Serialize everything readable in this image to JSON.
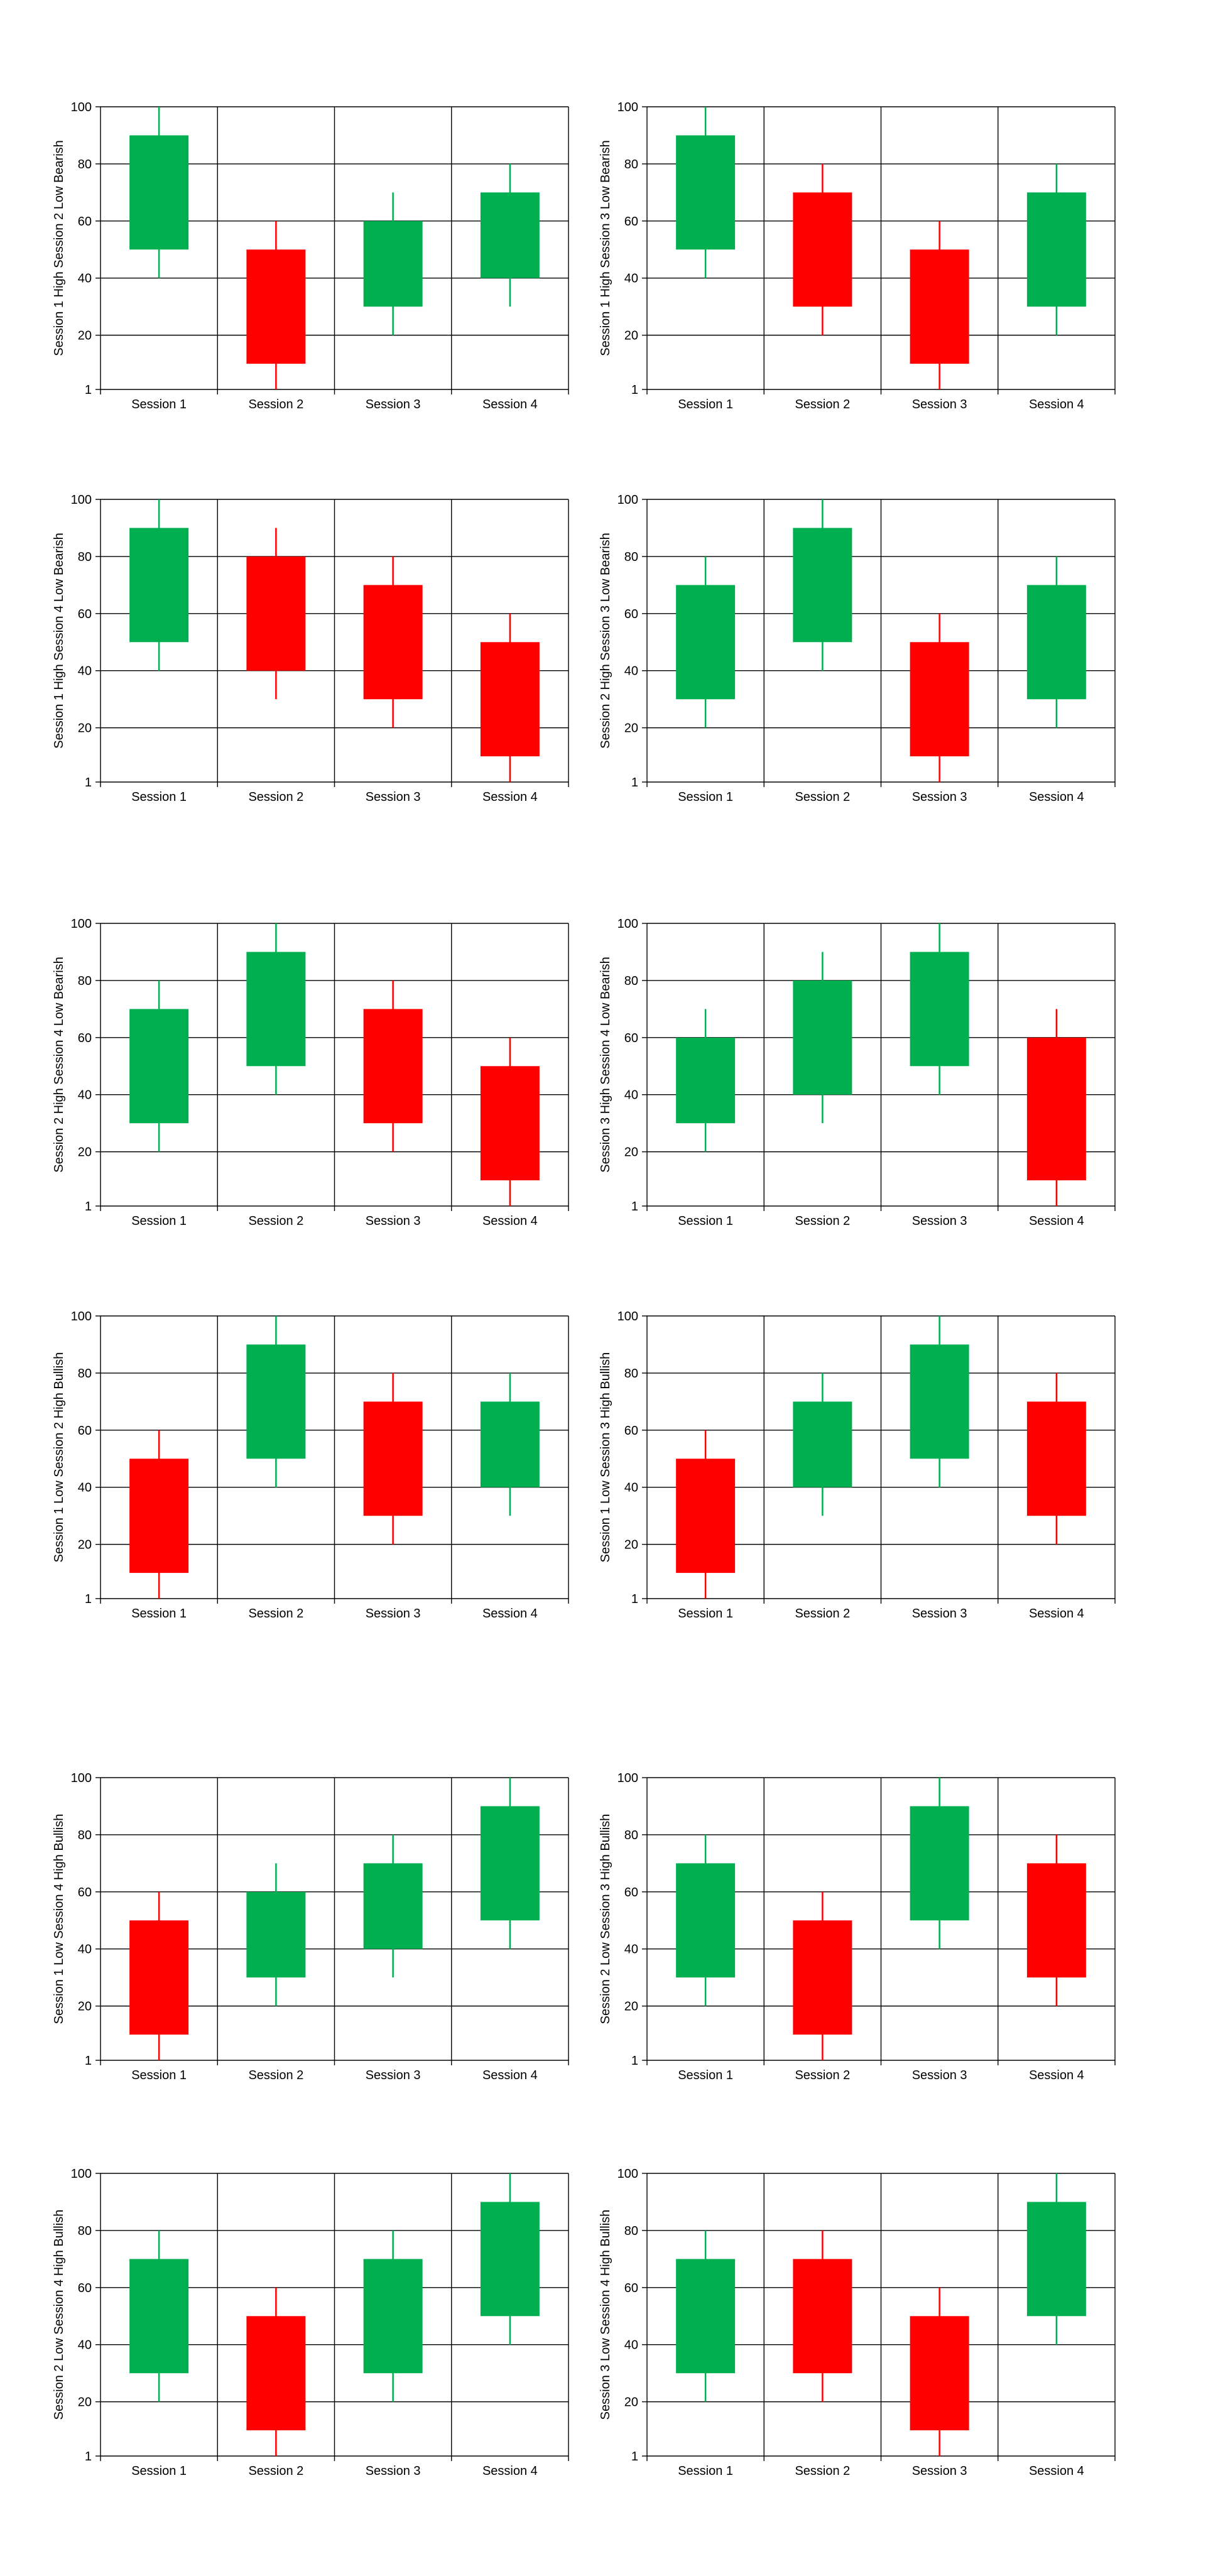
{
  "colors": {
    "bullish": "#00b050",
    "bearish": "#ff0000",
    "grid": "#000000"
  },
  "chart_data": [
    {
      "type": "candlestick",
      "ylabel": "Session 1 High Session 2 Low Bearish",
      "ylim": [
        1,
        100
      ],
      "yticks": [
        1,
        20,
        40,
        60,
        80,
        100
      ],
      "categories": [
        "Session 1",
        "Session 2",
        "Session 3",
        "Session 4"
      ],
      "candles": [
        {
          "low": 40,
          "open": 50,
          "close": 90,
          "high": 100
        },
        {
          "low": 1,
          "open": 50,
          "close": 10,
          "high": 60
        },
        {
          "low": 20,
          "open": 30,
          "close": 60,
          "high": 70
        },
        {
          "low": 30,
          "open": 40,
          "close": 70,
          "high": 80
        }
      ]
    },
    {
      "type": "candlestick",
      "ylabel": "Session 1 High Session 3 Low Bearish",
      "ylim": [
        1,
        100
      ],
      "yticks": [
        1,
        20,
        40,
        60,
        80,
        100
      ],
      "categories": [
        "Session 1",
        "Session 2",
        "Session 3",
        "Session 4"
      ],
      "candles": [
        {
          "low": 40,
          "open": 50,
          "close": 90,
          "high": 100
        },
        {
          "low": 20,
          "open": 70,
          "close": 30,
          "high": 80
        },
        {
          "low": 1,
          "open": 50,
          "close": 10,
          "high": 60
        },
        {
          "low": 20,
          "open": 30,
          "close": 70,
          "high": 80
        }
      ]
    },
    {
      "type": "candlestick",
      "ylabel": "Session 1 High Session 4 Low Bearish",
      "ylim": [
        1,
        100
      ],
      "yticks": [
        1,
        20,
        40,
        60,
        80,
        100
      ],
      "categories": [
        "Session 1",
        "Session 2",
        "Session 3",
        "Session 4"
      ],
      "candles": [
        {
          "low": 40,
          "open": 50,
          "close": 90,
          "high": 100
        },
        {
          "low": 30,
          "open": 80,
          "close": 40,
          "high": 90
        },
        {
          "low": 20,
          "open": 70,
          "close": 30,
          "high": 80
        },
        {
          "low": 1,
          "open": 50,
          "close": 10,
          "high": 60
        }
      ]
    },
    {
      "type": "candlestick",
      "ylabel": "Session 2 High Session 3 Low Bearish",
      "ylim": [
        1,
        100
      ],
      "yticks": [
        1,
        20,
        40,
        60,
        80,
        100
      ],
      "categories": [
        "Session 1",
        "Session 2",
        "Session 3",
        "Session 4"
      ],
      "candles": [
        {
          "low": 20,
          "open": 30,
          "close": 70,
          "high": 80
        },
        {
          "low": 40,
          "open": 50,
          "close": 90,
          "high": 100
        },
        {
          "low": 1,
          "open": 50,
          "close": 10,
          "high": 60
        },
        {
          "low": 20,
          "open": 30,
          "close": 70,
          "high": 80
        }
      ]
    },
    {
      "type": "candlestick",
      "ylabel": "Session 2 High Session 4 Low Bearish",
      "ylim": [
        1,
        100
      ],
      "yticks": [
        1,
        20,
        40,
        60,
        80,
        100
      ],
      "categories": [
        "Session 1",
        "Session 2",
        "Session 3",
        "Session 4"
      ],
      "candles": [
        {
          "low": 20,
          "open": 30,
          "close": 70,
          "high": 80
        },
        {
          "low": 40,
          "open": 50,
          "close": 90,
          "high": 100
        },
        {
          "low": 20,
          "open": 70,
          "close": 30,
          "high": 80
        },
        {
          "low": 1,
          "open": 50,
          "close": 10,
          "high": 60
        }
      ]
    },
    {
      "type": "candlestick",
      "ylabel": "Session 3 High Session 4 Low Bearish",
      "ylim": [
        1,
        100
      ],
      "yticks": [
        1,
        20,
        40,
        60,
        80,
        100
      ],
      "categories": [
        "Session 1",
        "Session 2",
        "Session 3",
        "Session 4"
      ],
      "candles": [
        {
          "low": 20,
          "open": 30,
          "close": 60,
          "high": 70
        },
        {
          "low": 30,
          "open": 40,
          "close": 80,
          "high": 90
        },
        {
          "low": 40,
          "open": 50,
          "close": 90,
          "high": 100
        },
        {
          "low": 1,
          "open": 60,
          "close": 10,
          "high": 70
        }
      ]
    },
    {
      "type": "candlestick",
      "ylabel": "Session 1 Low Session 2 High Bullish",
      "ylim": [
        1,
        100
      ],
      "yticks": [
        1,
        20,
        40,
        60,
        80,
        100
      ],
      "categories": [
        "Session 1",
        "Session 2",
        "Session 3",
        "Session 4"
      ],
      "candles": [
        {
          "low": 1,
          "open": 50,
          "close": 10,
          "high": 60
        },
        {
          "low": 40,
          "open": 50,
          "close": 90,
          "high": 100
        },
        {
          "low": 20,
          "open": 70,
          "close": 30,
          "high": 80
        },
        {
          "low": 30,
          "open": 40,
          "close": 70,
          "high": 80
        }
      ]
    },
    {
      "type": "candlestick",
      "ylabel": "Session 1 Low Session 3 High Bullish",
      "ylim": [
        1,
        100
      ],
      "yticks": [
        1,
        20,
        40,
        60,
        80,
        100
      ],
      "categories": [
        "Session 1",
        "Session 2",
        "Session 3",
        "Session 4"
      ],
      "candles": [
        {
          "low": 1,
          "open": 50,
          "close": 10,
          "high": 60
        },
        {
          "low": 30,
          "open": 40,
          "close": 70,
          "high": 80
        },
        {
          "low": 40,
          "open": 50,
          "close": 90,
          "high": 100
        },
        {
          "low": 20,
          "open": 70,
          "close": 30,
          "high": 80
        }
      ]
    },
    {
      "type": "candlestick",
      "ylabel": "Session 1 Low Session 4 High Bullish",
      "ylim": [
        1,
        100
      ],
      "yticks": [
        1,
        20,
        40,
        60,
        80,
        100
      ],
      "categories": [
        "Session 1",
        "Session 2",
        "Session 3",
        "Session 4"
      ],
      "candles": [
        {
          "low": 1,
          "open": 50,
          "close": 10,
          "high": 60
        },
        {
          "low": 20,
          "open": 30,
          "close": 60,
          "high": 70
        },
        {
          "low": 30,
          "open": 40,
          "close": 70,
          "high": 80
        },
        {
          "low": 40,
          "open": 50,
          "close": 90,
          "high": 100
        }
      ]
    },
    {
      "type": "candlestick",
      "ylabel": "Session 2 Low Session 3 High Bullish",
      "ylim": [
        1,
        100
      ],
      "yticks": [
        1,
        20,
        40,
        60,
        80,
        100
      ],
      "categories": [
        "Session 1",
        "Session 2",
        "Session 3",
        "Session 4"
      ],
      "candles": [
        {
          "low": 20,
          "open": 30,
          "close": 70,
          "high": 80
        },
        {
          "low": 1,
          "open": 50,
          "close": 10,
          "high": 60
        },
        {
          "low": 40,
          "open": 50,
          "close": 90,
          "high": 100
        },
        {
          "low": 20,
          "open": 70,
          "close": 30,
          "high": 80
        }
      ]
    },
    {
      "type": "candlestick",
      "ylabel": "Session 2 Low Session 4 High Bullish",
      "ylim": [
        1,
        100
      ],
      "yticks": [
        1,
        20,
        40,
        60,
        80,
        100
      ],
      "categories": [
        "Session 1",
        "Session 2",
        "Session 3",
        "Session 4"
      ],
      "candles": [
        {
          "low": 20,
          "open": 30,
          "close": 70,
          "high": 80
        },
        {
          "low": 1,
          "open": 50,
          "close": 10,
          "high": 60
        },
        {
          "low": 20,
          "open": 30,
          "close": 70,
          "high": 80
        },
        {
          "low": 40,
          "open": 50,
          "close": 90,
          "high": 100
        }
      ]
    },
    {
      "type": "candlestick",
      "ylabel": "Session 3 Low Session 4 High Bullish",
      "ylim": [
        1,
        100
      ],
      "yticks": [
        1,
        20,
        40,
        60,
        80,
        100
      ],
      "categories": [
        "Session 1",
        "Session 2",
        "Session 3",
        "Session 4"
      ],
      "candles": [
        {
          "low": 20,
          "open": 30,
          "close": 70,
          "high": 80
        },
        {
          "low": 20,
          "open": 70,
          "close": 30,
          "high": 80
        },
        {
          "low": 1,
          "open": 50,
          "close": 10,
          "high": 60
        },
        {
          "low": 40,
          "open": 50,
          "close": 90,
          "high": 100
        }
      ]
    }
  ]
}
